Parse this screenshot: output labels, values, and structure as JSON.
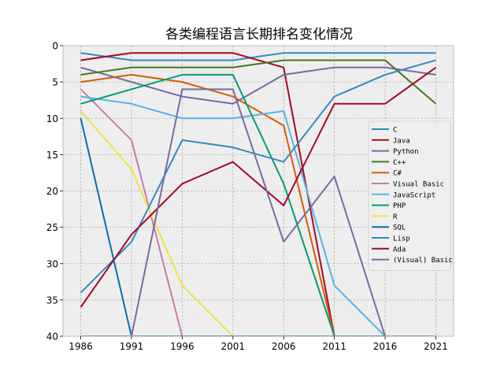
{
  "chart_data": {
    "type": "line",
    "title": "各类编程语言长期排名变化情况",
    "xlabel": "",
    "ylabel": "",
    "x": [
      "1986",
      "1991",
      "1996",
      "2001",
      "2006",
      "2011",
      "2016",
      "2021"
    ],
    "ylim": [
      40,
      0
    ],
    "yticks": [
      0,
      5,
      10,
      15,
      20,
      25,
      30,
      35,
      40
    ],
    "grid": true,
    "legend_position": "right",
    "series": [
      {
        "name": "C",
        "color": "#348abd",
        "values": [
          1,
          2,
          2,
          2,
          1,
          1,
          1,
          1
        ]
      },
      {
        "name": "Java",
        "color": "#a60628",
        "values": [
          2,
          1,
          1,
          1,
          3,
          40,
          40,
          40
        ]
      },
      {
        "name": "Python",
        "color": "#7a68a6",
        "values": [
          3,
          5,
          7,
          8,
          4,
          3,
          3,
          4
        ]
      },
      {
        "name": "C++",
        "color": "#467821",
        "values": [
          4,
          3,
          3,
          3,
          2,
          2,
          2,
          8
        ]
      },
      {
        "name": "C#",
        "color": "#d55e00",
        "values": [
          5,
          4,
          5,
          7,
          11,
          40,
          40,
          40
        ]
      },
      {
        "name": "Visual Basic",
        "color": "#cc79a7",
        "values": [
          6,
          13,
          40,
          40,
          40,
          40,
          40,
          40
        ]
      },
      {
        "name": "JavaScript",
        "color": "#56b4e9",
        "values": [
          7,
          8,
          10,
          10,
          9,
          33,
          40,
          40
        ]
      },
      {
        "name": "PHP",
        "color": "#009e73",
        "values": [
          8,
          6,
          4,
          4,
          19,
          40,
          40,
          40
        ]
      },
      {
        "name": "R",
        "color": "#f0e442",
        "values": [
          9,
          17,
          33,
          40,
          40,
          40,
          40,
          40
        ]
      },
      {
        "name": "SQL",
        "color": "#0072b2",
        "values": [
          10,
          40,
          40,
          40,
          40,
          40,
          40,
          40
        ]
      },
      {
        "name": "Lisp",
        "color": "#348abd",
        "values": [
          34,
          27,
          13,
          14,
          16,
          7,
          4,
          2
        ]
      },
      {
        "name": "Ada",
        "color": "#a60628",
        "values": [
          36,
          26,
          19,
          16,
          22,
          8,
          8,
          3
        ]
      },
      {
        "name": "(Visual) Basic",
        "color": "#7a68a6",
        "values": [
          40,
          40,
          6,
          6,
          27,
          18,
          40,
          40
        ]
      }
    ]
  }
}
